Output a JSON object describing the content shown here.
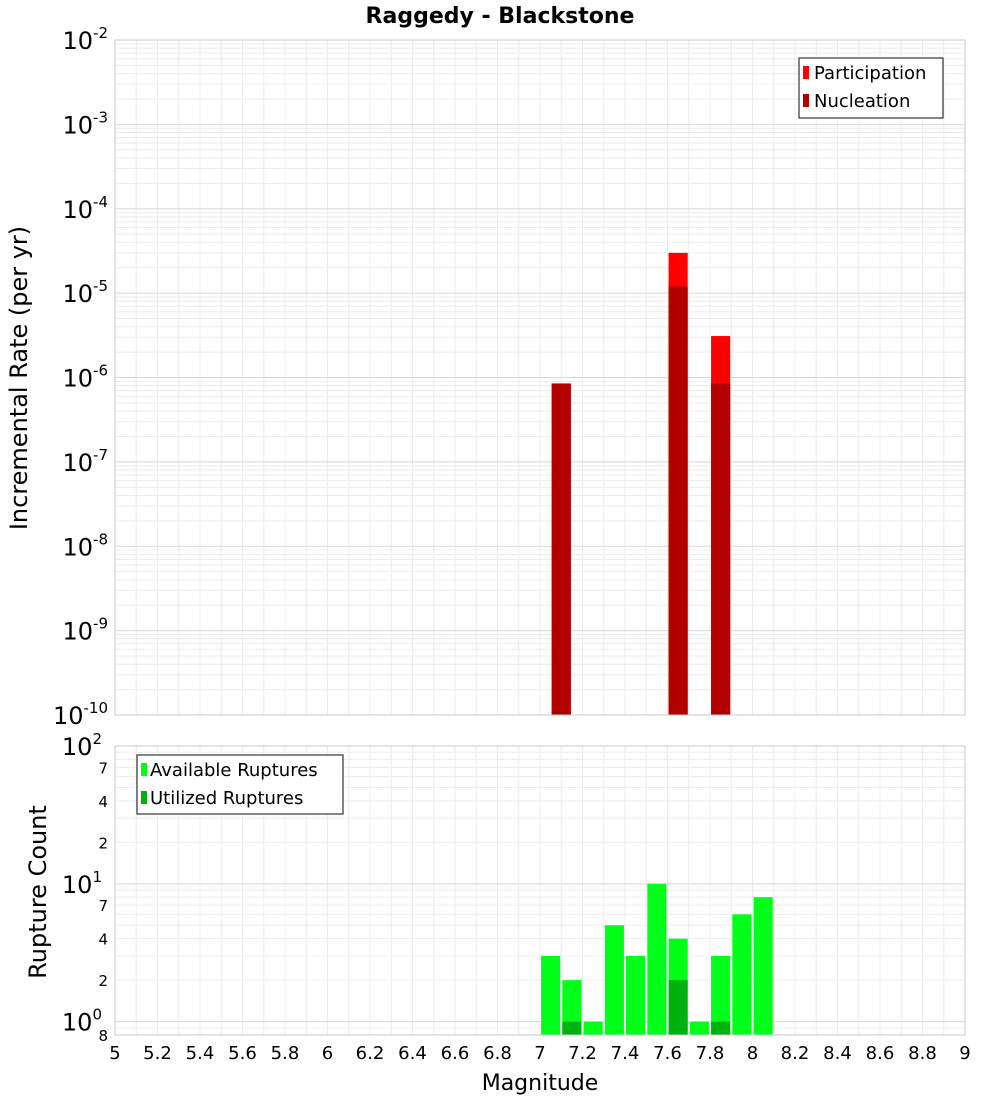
{
  "chart_data": [
    {
      "type": "bar",
      "title": "Raggedy - Blackstone",
      "xlabel": "",
      "ylabel": "Incremental Rate (per yr)",
      "yscale": "log",
      "xlim": [
        5,
        9
      ],
      "ylim": [
        1e-10,
        0.01
      ],
      "ytick_exponents": [
        "-10",
        "-9",
        "-8",
        "-7",
        "-6",
        "-5",
        "-4",
        "-3",
        "-2"
      ],
      "grid": true,
      "legend_position": "top-right",
      "bar_width": 0.09,
      "series": [
        {
          "name": "Participation",
          "color": "#ff0000",
          "x": [
            7.1,
            7.65,
            7.85
          ],
          "values": [
            8.5e-07,
            3e-05,
            3.1e-06
          ]
        },
        {
          "name": "Nucleation",
          "color": "#b20000",
          "x": [
            7.1,
            7.65,
            7.85
          ],
          "values": [
            8.5e-07,
            1.2e-05,
            8.5e-07
          ]
        }
      ]
    },
    {
      "type": "bar",
      "title": "",
      "xlabel": "Magnitude",
      "ylabel": "Rupture Count",
      "yscale": "log",
      "xlim": [
        5,
        9
      ],
      "ylim": [
        0.8,
        100
      ],
      "x_ticks": [
        "5",
        "5.2",
        "5.4",
        "5.6",
        "5.8",
        "6",
        "6.2",
        "6.4",
        "6.6",
        "6.8",
        "7",
        "7.2",
        "7.4",
        "7.6",
        "7.8",
        "8",
        "8.2",
        "8.4",
        "8.6",
        "8.8",
        "9"
      ],
      "y_major_ticks": [
        {
          "value": 1,
          "base": "10",
          "exp": "0"
        },
        {
          "value": 10,
          "base": "10",
          "exp": "1"
        },
        {
          "value": 100,
          "base": "10",
          "exp": "2"
        }
      ],
      "y_minor_ticks": [
        {
          "value": 0.8,
          "label": "8"
        },
        {
          "value": 2,
          "label": "2"
        },
        {
          "value": 4,
          "label": "4"
        },
        {
          "value": 7,
          "label": "7"
        },
        {
          "value": 20,
          "label": "2"
        },
        {
          "value": 40,
          "label": "4"
        },
        {
          "value": 70,
          "label": "7"
        }
      ],
      "grid": true,
      "legend_position": "top-left",
      "bar_width": 0.09,
      "series": [
        {
          "name": "Available Ruptures",
          "color": "#00ff19",
          "x": [
            7.05,
            7.15,
            7.25,
            7.35,
            7.45,
            7.55,
            7.65,
            7.75,
            7.85,
            7.95,
            8.05
          ],
          "values": [
            3,
            2,
            1,
            5,
            3,
            10,
            4,
            1,
            3,
            6,
            8
          ]
        },
        {
          "name": "Utilized Ruptures",
          "color": "#00b20f",
          "x": [
            7.15,
            7.65,
            7.85
          ],
          "values": [
            1,
            2,
            1
          ]
        }
      ]
    }
  ]
}
